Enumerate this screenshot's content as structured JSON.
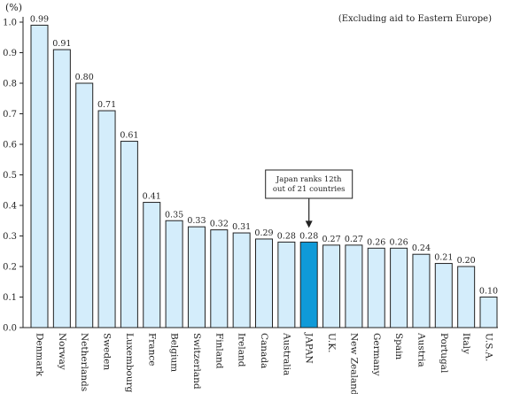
{
  "chart_data": {
    "type": "bar",
    "categories": [
      "Denmark",
      "Norway",
      "Netherlands",
      "Sweden",
      "Luxembourg",
      "France",
      "Belgium",
      "Switzerland",
      "Finland",
      "Ireland",
      "Canada",
      "Australia",
      "JAPAN",
      "U.K.",
      "New Zealand",
      "Germany",
      "Spain",
      "Austria",
      "Portugal",
      "Italy",
      "U.S.A."
    ],
    "values": [
      0.99,
      0.91,
      0.8,
      0.71,
      0.61,
      0.41,
      0.35,
      0.33,
      0.32,
      0.31,
      0.29,
      0.28,
      0.28,
      0.27,
      0.27,
      0.26,
      0.26,
      0.24,
      0.21,
      0.2,
      0.1
    ],
    "value_labels": [
      "0.99",
      "0.91",
      "0.80",
      "0.71",
      "0.61",
      "0.41",
      "0.35",
      "0.33",
      "0.32",
      "0.31",
      "0.29",
      "0.28",
      "0.28",
      "0.27",
      "0.27",
      "0.26",
      "0.26",
      "0.24",
      "0.21",
      "0.20",
      "0.10"
    ],
    "y_ticks": [
      "0.0",
      "0.1",
      "0.2",
      "0.3",
      "0.4",
      "0.5",
      "0.6",
      "0.7",
      "0.8",
      "0.9",
      "1.0"
    ],
    "ylim": [
      0,
      1.0
    ],
    "unit": "(%)",
    "note": "(Excluding aid to Eastern Europe)",
    "annotation": {
      "lines": [
        "Japan ranks 12th",
        "out of 21 countries"
      ],
      "target_category": "JAPAN"
    },
    "highlight_category": "JAPAN",
    "colors": {
      "bar": "#d4edfb",
      "highlight": "#0f9ad8",
      "stroke": "#222222"
    },
    "grid": false,
    "legend": "none"
  }
}
